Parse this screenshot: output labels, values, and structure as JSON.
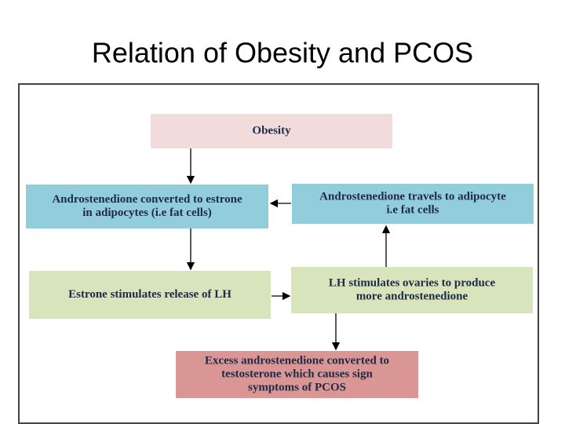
{
  "title": "Relation of Obesity and PCOS",
  "nodes": [
    {
      "lines": [
        "Obesity"
      ]
    },
    {
      "lines": [
        "Androstenedione converted to estrone",
        "in adipocytes (i.e fat cells)"
      ]
    },
    {
      "lines": [
        "Androstenedione travels to adipocyte",
        "i.e fat cells"
      ]
    },
    {
      "lines": [
        "Estrone stimulates release of LH"
      ]
    },
    {
      "lines": [
        "LH stimulates ovaries to produce",
        "more androstenedione"
      ]
    },
    {
      "lines": [
        "Excess androstenedione converted to",
        "testosterone which causes sign",
        "symptoms of PCOS"
      ]
    }
  ]
}
